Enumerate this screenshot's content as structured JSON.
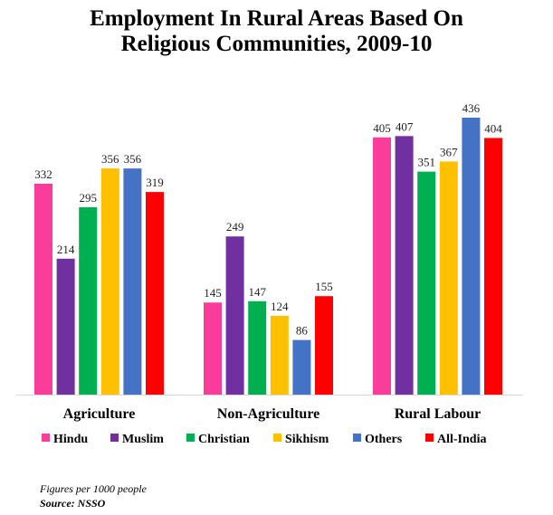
{
  "title_line1": "Employment In Rural Areas Based On",
  "title_line2": "Religious Communities, 2009-10",
  "note": "Figures per 1000 people",
  "source": "Source: NSSO",
  "chart_data": {
    "type": "bar",
    "categories": [
      "Agriculture",
      "Non-Agriculture",
      "Rural Labour"
    ],
    "series": [
      {
        "name": "Hindu",
        "color": "#fa3c9b",
        "values": [
          332,
          145,
          405
        ]
      },
      {
        "name": "Muslim",
        "color": "#7030a0",
        "values": [
          214,
          249,
          407
        ]
      },
      {
        "name": "Christian",
        "color": "#00b050",
        "values": [
          295,
          147,
          351
        ]
      },
      {
        "name": "Sikhism",
        "color": "#ffc000",
        "values": [
          356,
          124,
          367
        ]
      },
      {
        "name": "Others",
        "color": "#4472c4",
        "values": [
          356,
          86,
          436
        ]
      },
      {
        "name": "All-India",
        "color": "#ff0000",
        "values": [
          319,
          155,
          404
        ]
      }
    ],
    "ylim": [
      0,
      436
    ],
    "grid": false,
    "legend_position": "bottom",
    "data_labels": true
  }
}
